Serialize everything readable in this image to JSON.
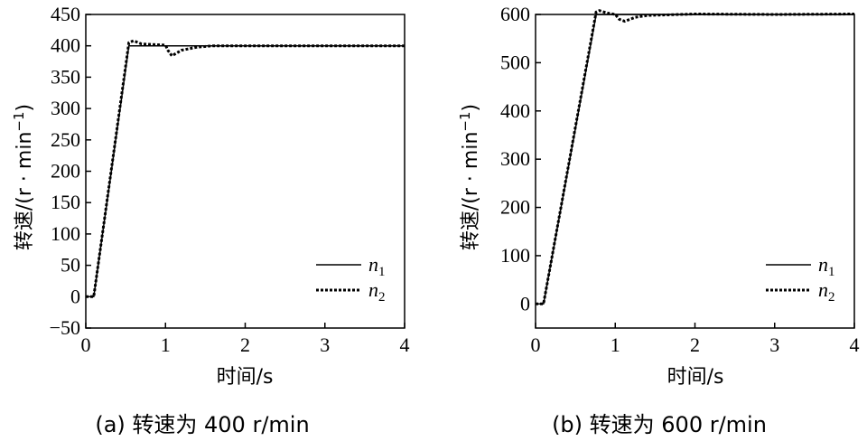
{
  "chart_data": [
    {
      "type": "line",
      "caption": "(a) 转速为 400 r/min",
      "xlabel": "时间/s",
      "ylabel": "转速/(r · min",
      "ylabel_sup": "−1",
      "ylabel_end": ")",
      "xlim": [
        0,
        4
      ],
      "ylim": [
        -50,
        450
      ],
      "xticks": [
        "0",
        "1",
        "2",
        "3",
        "4"
      ],
      "yticks": [
        "−50",
        "0",
        "50",
        "100",
        "150",
        "200",
        "250",
        "300",
        "350",
        "400",
        "450"
      ],
      "grid": false,
      "legend_position": "bottom-right",
      "series": [
        {
          "name": "n",
          "sub": "1",
          "style": "solid",
          "x": [
            0,
            0.1,
            0.54,
            1.0,
            1.05,
            1.2,
            1.5,
            2.0,
            3.0,
            4.0
          ],
          "y": [
            0,
            0,
            400,
            400,
            400,
            400,
            400,
            400,
            400,
            400
          ]
        },
        {
          "name": "n",
          "sub": "2",
          "style": "dotted",
          "x": [
            0,
            0.1,
            0.54,
            0.6,
            0.7,
            1.0,
            1.03,
            1.08,
            1.2,
            1.4,
            1.6,
            2.0,
            3.0,
            4.0
          ],
          "y": [
            0,
            0,
            405,
            408,
            403,
            401,
            393,
            384,
            393,
            398,
            400,
            400,
            400,
            400
          ]
        }
      ]
    },
    {
      "type": "line",
      "caption": "(b) 转速为 600 r/min",
      "xlabel": "时间/s",
      "ylabel": "转速/(r · min",
      "ylabel_sup": "−1",
      "ylabel_end": ")",
      "xlim": [
        0,
        4
      ],
      "ylim": [
        -50,
        600
      ],
      "xticks": [
        "0",
        "1",
        "2",
        "3",
        "4"
      ],
      "yticks": [
        "0",
        "100",
        "200",
        "300",
        "400",
        "500",
        "600"
      ],
      "grid": false,
      "legend_position": "bottom-right",
      "series": [
        {
          "name": "n",
          "sub": "1",
          "style": "solid",
          "x": [
            0,
            0.1,
            0.76,
            1.0,
            1.5,
            2.0,
            3.0,
            4.0
          ],
          "y": [
            0,
            0,
            600,
            600,
            600,
            600,
            600,
            600
          ]
        },
        {
          "name": "n",
          "sub": "2",
          "style": "dotted",
          "x": [
            0,
            0.1,
            0.76,
            0.8,
            0.9,
            1.0,
            1.05,
            1.12,
            1.25,
            1.4,
            2.0,
            3.0,
            4.0
          ],
          "y": [
            0,
            0,
            605,
            608,
            603,
            600,
            590,
            586,
            594,
            598,
            601,
            600,
            601
          ]
        }
      ]
    }
  ]
}
